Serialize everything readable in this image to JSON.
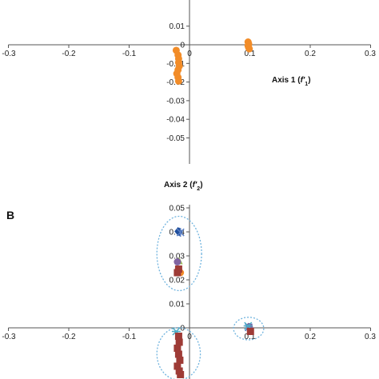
{
  "chart_data": [
    {
      "panel": "",
      "type": "scatter",
      "xlim": [
        -0.3,
        0.3
      ],
      "ylim": [
        -0.05,
        0.01
      ],
      "x_ticks": [
        "-0.3",
        "-0.2",
        "-0.1",
        "0",
        "0.1",
        "0.2",
        "0.3"
      ],
      "y_ticks": [
        "0.01",
        "0",
        "-0.01",
        "-0.02",
        "-0.03",
        "-0.04",
        "-0.05"
      ],
      "xlabel": {
        "text": "Axis 1 (",
        "symbol": "f'",
        "sub": "1",
        "close": ")"
      },
      "ylabel": {
        "text": "Axis 2 (",
        "symbol": "f'",
        "sub": "2",
        "close": ")"
      },
      "series": [
        {
          "marker": "circle",
          "color": "#f28c28",
          "points": [
            [
              0.097,
              0.0015
            ],
            [
              0.098,
              0.0005
            ],
            [
              0.097,
              -0.0005
            ],
            [
              0.098,
              -0.0015
            ],
            [
              0.099,
              -0.0022
            ],
            [
              -0.022,
              -0.003
            ],
            [
              -0.019,
              -0.0055
            ],
            [
              -0.018,
              -0.0075
            ],
            [
              -0.018,
              -0.0095
            ],
            [
              -0.017,
              -0.0115
            ],
            [
              -0.019,
              -0.0135
            ],
            [
              -0.021,
              -0.0155
            ],
            [
              -0.019,
              -0.0175
            ],
            [
              -0.018,
              -0.0195
            ]
          ]
        }
      ]
    },
    {
      "panel": "B",
      "type": "scatter",
      "xlim": [
        -0.3,
        0.3
      ],
      "ylim": [
        -0.02,
        0.05
      ],
      "x_ticks": [
        "-0.3",
        "-0.2",
        "-0.1",
        "0",
        "0.1",
        "0.2",
        "0.3"
      ],
      "y_ticks": [
        "0.05",
        "0.04",
        "0.03",
        "0.02",
        "0.01",
        "0"
      ],
      "series": [
        {
          "marker": "diamond",
          "color": "#1f4e9c",
          "points": [
            [
              -0.017,
              0.04
            ],
            [
              -0.019,
              0.0402
            ]
          ]
        },
        {
          "marker": "star",
          "color": "#5a7fc4",
          "points": [
            [
              -0.015,
              0.0398
            ],
            [
              0.098,
              0.0002
            ]
          ]
        },
        {
          "marker": "triangle",
          "color": "#9bbb59",
          "points": [
            [
              -0.017,
              0.028
            ]
          ]
        },
        {
          "marker": "circle",
          "color": "#8064a2",
          "points": [
            [
              -0.02,
              0.0275
            ],
            [
              0.099,
              0.0005
            ]
          ]
        },
        {
          "marker": "cross",
          "color": "#4bacc6",
          "points": [
            [
              -0.022,
              -0.0015
            ],
            [
              0.097,
              0.0008
            ]
          ]
        },
        {
          "marker": "circle",
          "color": "#f28c28",
          "points": [
            [
              -0.015,
              0.023
            ]
          ]
        },
        {
          "marker": "square",
          "color": "#9e3b36",
          "points": [
            [
              -0.018,
              0.0245
            ],
            [
              -0.02,
              0.023
            ],
            [
              0.101,
              -0.0015
            ],
            [
              -0.018,
              -0.0035
            ],
            [
              -0.017,
              -0.006
            ],
            [
              -0.02,
              -0.0085
            ],
            [
              -0.018,
              -0.011
            ],
            [
              -0.016,
              -0.0135
            ],
            [
              -0.02,
              -0.016
            ],
            [
              -0.017,
              -0.018
            ],
            [
              -0.015,
              -0.0195
            ]
          ]
        }
      ],
      "groups": [
        {
          "center": [
            -0.017,
            0.031
          ],
          "rx": 0.037,
          "ry": 0.0155
        },
        {
          "center": [
            0.098,
            -0.0003
          ],
          "rx": 0.025,
          "ry": 0.0047
        },
        {
          "center": [
            -0.018,
            -0.0108
          ],
          "rx": 0.036,
          "ry": 0.0109
        }
      ]
    }
  ]
}
